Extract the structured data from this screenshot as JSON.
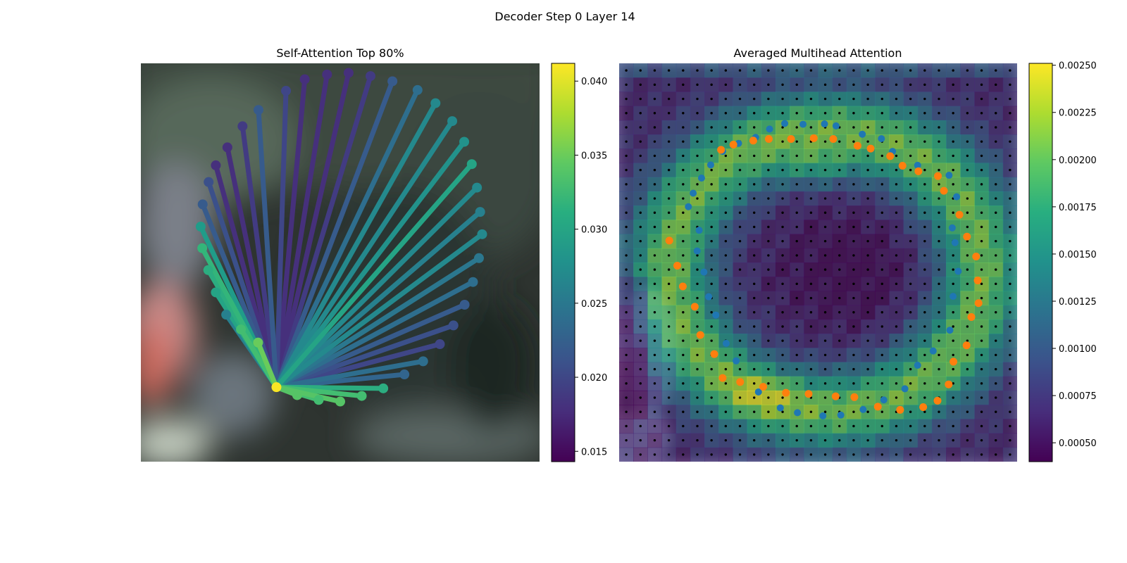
{
  "figure": {
    "title": "Decoder Step 0 Layer 14"
  },
  "chart_data": [
    {
      "type": "network",
      "title": "Self-Attention Top 80%",
      "colormap": "viridis",
      "colorbar": {
        "ticks": [
          "0.015",
          "0.020",
          "0.025",
          "0.030",
          "0.035",
          "0.040"
        ],
        "range": [
          0.0143,
          0.0412
        ]
      },
      "query_point": [
        0.34,
        0.813
      ],
      "points": [
        [
          0.34,
          0.813,
          0.041
        ],
        [
          0.392,
          0.833,
          0.034
        ],
        [
          0.446,
          0.845,
          0.033
        ],
        [
          0.5,
          0.849,
          0.034
        ],
        [
          0.554,
          0.835,
          0.033
        ],
        [
          0.608,
          0.816,
          0.031
        ],
        [
          0.661,
          0.781,
          0.023
        ],
        [
          0.708,
          0.748,
          0.024
        ],
        [
          0.75,
          0.705,
          0.02
        ],
        [
          0.784,
          0.658,
          0.021
        ],
        [
          0.812,
          0.606,
          0.022
        ],
        [
          0.833,
          0.549,
          0.024
        ],
        [
          0.848,
          0.489,
          0.025
        ],
        [
          0.856,
          0.429,
          0.027
        ],
        [
          0.851,
          0.373,
          0.026
        ],
        [
          0.843,
          0.312,
          0.027
        ],
        [
          0.83,
          0.253,
          0.03
        ],
        [
          0.811,
          0.197,
          0.028
        ],
        [
          0.781,
          0.145,
          0.027
        ],
        [
          0.739,
          0.1,
          0.027
        ],
        [
          0.694,
          0.067,
          0.024
        ],
        [
          0.631,
          0.045,
          0.022
        ],
        [
          0.576,
          0.032,
          0.019
        ],
        [
          0.521,
          0.024,
          0.018
        ],
        [
          0.467,
          0.028,
          0.018
        ],
        [
          0.411,
          0.04,
          0.018
        ],
        [
          0.364,
          0.069,
          0.02
        ],
        [
          0.295,
          0.117,
          0.022
        ],
        [
          0.255,
          0.158,
          0.019
        ],
        [
          0.217,
          0.211,
          0.018
        ],
        [
          0.188,
          0.256,
          0.018
        ],
        [
          0.17,
          0.298,
          0.021
        ],
        [
          0.155,
          0.354,
          0.022
        ],
        [
          0.15,
          0.41,
          0.029
        ],
        [
          0.154,
          0.464,
          0.032
        ],
        [
          0.169,
          0.519,
          0.031
        ],
        [
          0.188,
          0.575,
          0.03
        ],
        [
          0.214,
          0.631,
          0.026
        ],
        [
          0.251,
          0.668,
          0.033
        ],
        [
          0.294,
          0.701,
          0.035
        ]
      ]
    },
    {
      "type": "heatmap",
      "title": "Averaged Multihead Attention",
      "colormap": "viridis",
      "colorbar": {
        "ticks": [
          "0.00050",
          "0.00075",
          "0.00100",
          "0.00125",
          "0.00150",
          "0.00175",
          "0.00200",
          "0.00225",
          "0.00250"
        ],
        "range": [
          0.0004,
          0.00251
        ]
      },
      "grid_size": 28,
      "blue_points": [
        [
          0.343,
          0.186
        ],
        [
          0.378,
          0.165
        ],
        [
          0.416,
          0.151
        ],
        [
          0.462,
          0.153
        ],
        [
          0.516,
          0.152
        ],
        [
          0.545,
          0.157
        ],
        [
          0.611,
          0.178
        ],
        [
          0.659,
          0.189
        ],
        [
          0.687,
          0.221
        ],
        [
          0.75,
          0.256
        ],
        [
          0.829,
          0.281
        ],
        [
          0.848,
          0.335
        ],
        [
          0.837,
          0.413
        ],
        [
          0.844,
          0.45
        ],
        [
          0.852,
          0.522
        ],
        [
          0.839,
          0.585
        ],
        [
          0.831,
          0.67
        ],
        [
          0.789,
          0.722
        ],
        [
          0.75,
          0.758
        ],
        [
          0.718,
          0.817
        ],
        [
          0.665,
          0.845
        ],
        [
          0.613,
          0.869
        ],
        [
          0.557,
          0.883
        ],
        [
          0.512,
          0.885
        ],
        [
          0.448,
          0.877
        ],
        [
          0.405,
          0.865
        ],
        [
          0.35,
          0.825
        ],
        [
          0.294,
          0.747
        ],
        [
          0.269,
          0.703
        ],
        [
          0.243,
          0.632
        ],
        [
          0.225,
          0.586
        ],
        [
          0.213,
          0.524
        ],
        [
          0.196,
          0.471
        ],
        [
          0.201,
          0.419
        ],
        [
          0.174,
          0.36
        ],
        [
          0.186,
          0.326
        ],
        [
          0.207,
          0.288
        ],
        [
          0.23,
          0.255
        ],
        [
          0.26,
          0.221
        ],
        [
          0.3,
          0.201
        ]
      ],
      "orange_points": [
        [
          0.256,
          0.217
        ],
        [
          0.287,
          0.204
        ],
        [
          0.337,
          0.194
        ],
        [
          0.376,
          0.19
        ],
        [
          0.432,
          0.19
        ],
        [
          0.489,
          0.188
        ],
        [
          0.538,
          0.19
        ],
        [
          0.599,
          0.207
        ],
        [
          0.632,
          0.214
        ],
        [
          0.681,
          0.233
        ],
        [
          0.712,
          0.257
        ],
        [
          0.752,
          0.271
        ],
        [
          0.801,
          0.283
        ],
        [
          0.816,
          0.32
        ],
        [
          0.855,
          0.38
        ],
        [
          0.874,
          0.435
        ],
        [
          0.897,
          0.485
        ],
        [
          0.901,
          0.545
        ],
        [
          0.903,
          0.602
        ],
        [
          0.885,
          0.637
        ],
        [
          0.873,
          0.708
        ],
        [
          0.84,
          0.749
        ],
        [
          0.828,
          0.806
        ],
        [
          0.8,
          0.847
        ],
        [
          0.764,
          0.863
        ],
        [
          0.706,
          0.87
        ],
        [
          0.65,
          0.862
        ],
        [
          0.591,
          0.838
        ],
        [
          0.544,
          0.836
        ],
        [
          0.476,
          0.83
        ],
        [
          0.419,
          0.827
        ],
        [
          0.362,
          0.812
        ],
        [
          0.304,
          0.8
        ],
        [
          0.26,
          0.79
        ],
        [
          0.239,
          0.73
        ],
        [
          0.204,
          0.682
        ],
        [
          0.19,
          0.611
        ],
        [
          0.16,
          0.56
        ],
        [
          0.146,
          0.508
        ],
        [
          0.126,
          0.445
        ]
      ]
    }
  ]
}
